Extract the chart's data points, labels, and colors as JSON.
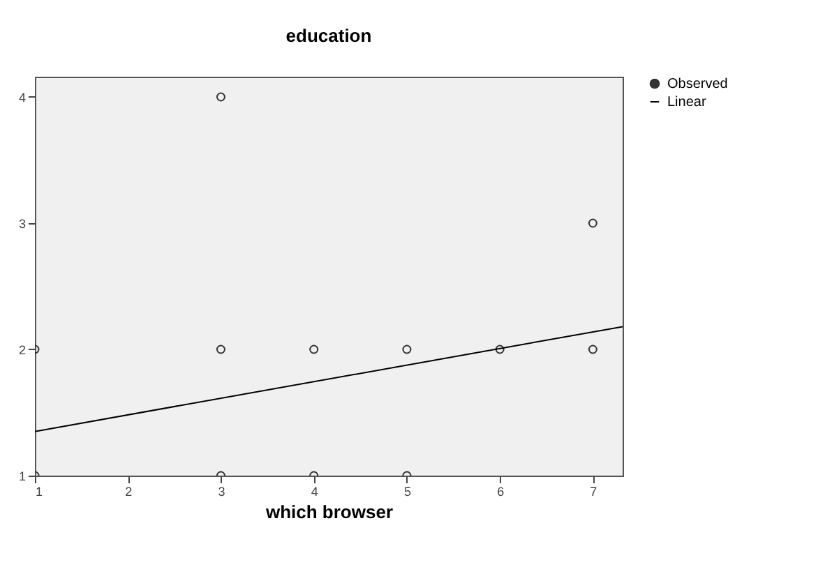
{
  "chart_data": {
    "type": "scatter",
    "title": "education",
    "xlabel": "which browser",
    "xlim": [
      1,
      7.32
    ],
    "xticks": [
      1,
      2,
      3,
      4,
      5,
      6,
      7
    ],
    "ylim": [
      1,
      4.16
    ],
    "yticks": [
      1,
      2,
      3,
      4
    ],
    "series": [
      {
        "name": "Observed",
        "type": "scatter",
        "color": "#333333",
        "marker": "circle",
        "x": [
          1,
          1,
          3,
          3,
          3,
          4,
          4,
          5,
          5,
          6,
          7,
          7
        ],
        "values": [
          1,
          2,
          1,
          2,
          4,
          1,
          2,
          1,
          2,
          2,
          2,
          3
        ]
      },
      {
        "name": "Linear",
        "type": "line",
        "color": "#000000",
        "line_style": "solid",
        "x": [
          1,
          7.32
        ],
        "values": [
          1.35,
          2.18
        ]
      }
    ],
    "grid": false,
    "legend": "top right"
  }
}
